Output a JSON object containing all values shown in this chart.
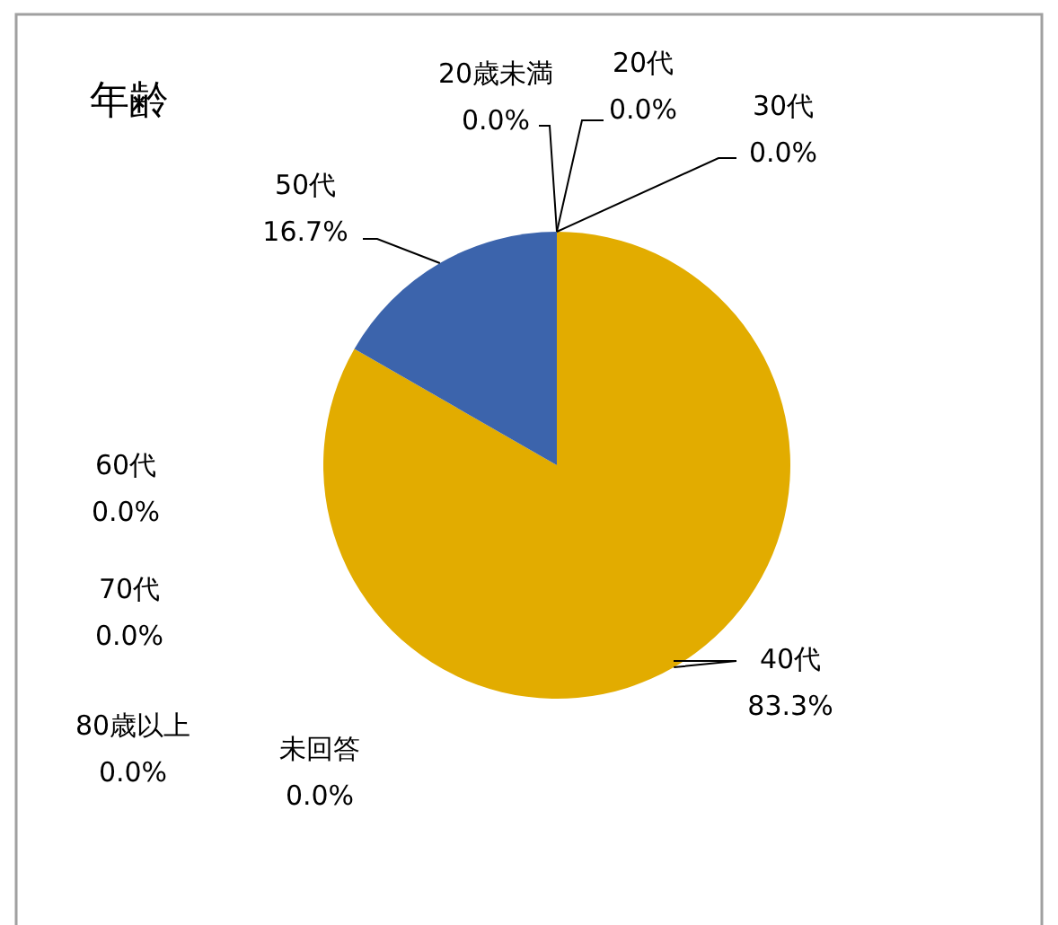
{
  "chart_data": {
    "type": "pie",
    "title": "年齢",
    "categories": [
      "20歳未満",
      "20代",
      "30代",
      "40代",
      "50代",
      "60代",
      "70代",
      "80歳以上",
      "未回答"
    ],
    "values": [
      0,
      0,
      0,
      83.3,
      16.7,
      0,
      0,
      0,
      0
    ],
    "colors": [
      "#5b9bd5",
      "#ed7d31",
      "#a5a5a5",
      "#e2ac00",
      "#3c64ac",
      "#70ad47",
      "#264478",
      "#9e480e",
      "#636363"
    ],
    "value_labels": [
      "0.0%",
      "0.0%",
      "0.0%",
      "83.3%",
      "16.7%",
      "0.0%",
      "0.0%",
      "0.0%",
      "0.0%"
    ],
    "legend": false
  }
}
